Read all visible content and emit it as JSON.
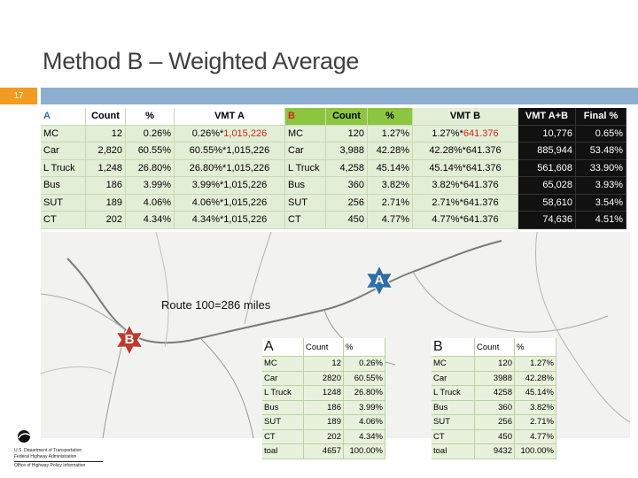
{
  "slide": {
    "title": "Method B – Weighted Average",
    "number": "17"
  },
  "top_table": {
    "header_a": {
      "letter": "A",
      "count": "Count",
      "pct": "%",
      "vmt": "VMT A"
    },
    "header_b": {
      "letter": "B",
      "count": "Count",
      "pct": "%",
      "vmt": "VMT B"
    },
    "header_final": {
      "vmt_ab": "VMT A+B",
      "final": "Final %"
    },
    "rows": [
      {
        "a_label": "MC",
        "a_count": "12",
        "a_pct": "0.26%",
        "a_vmt_pre": "0.26%*",
        "a_vmt_val": "1,015,226",
        "a_vmt_red": true,
        "b_label": "MC",
        "b_count": "120",
        "b_pct": "1.27%",
        "b_vmt_pre": "1.27%*",
        "b_vmt_val": "641.376",
        "b_vmt_red": true,
        "vmt_ab": "10,776",
        "final": "0.65%"
      },
      {
        "a_label": "Car",
        "a_count": "2,820",
        "a_pct": "60.55%",
        "a_vmt_pre": "60.55%*",
        "a_vmt_val": "1,015,226",
        "a_vmt_red": false,
        "b_label": "Car",
        "b_count": "3,988",
        "b_pct": "42.28%",
        "b_vmt_pre": "42.28%*",
        "b_vmt_val": "641.376",
        "b_vmt_red": false,
        "vmt_ab": "885,944",
        "final": "53.48%"
      },
      {
        "a_label": "L Truck",
        "a_count": "1,248",
        "a_pct": "26.80%",
        "a_vmt_pre": "26.80%*",
        "a_vmt_val": "1,015,226",
        "a_vmt_red": false,
        "b_label": "L Truck",
        "b_count": "4,258",
        "b_pct": "45.14%",
        "b_vmt_pre": "45.14%*",
        "b_vmt_val": "641.376",
        "b_vmt_red": false,
        "vmt_ab": "561,608",
        "final": "33.90%"
      },
      {
        "a_label": "Bus",
        "a_count": "186",
        "a_pct": "3.99%",
        "a_vmt_pre": "3.99%*",
        "a_vmt_val": "1,015,226",
        "a_vmt_red": false,
        "b_label": "Bus",
        "b_count": "360",
        "b_pct": "3.82%",
        "b_vmt_pre": "3.82%*",
        "b_vmt_val": "641.376",
        "b_vmt_red": false,
        "vmt_ab": "65,028",
        "final": "3.93%"
      },
      {
        "a_label": "SUT",
        "a_count": "189",
        "a_pct": "4.06%",
        "a_vmt_pre": "4.06%*",
        "a_vmt_val": "1,015,226",
        "a_vmt_red": false,
        "b_label": "SUT",
        "b_count": "256",
        "b_pct": "2.71%",
        "b_vmt_pre": "2.71%*",
        "b_vmt_val": "641.376",
        "b_vmt_red": false,
        "vmt_ab": "58,610",
        "final": "3.54%"
      },
      {
        "a_label": "CT",
        "a_count": "202",
        "a_pct": "4.34%",
        "a_vmt_pre": "4.34%*",
        "a_vmt_val": "1,015,226",
        "a_vmt_red": false,
        "b_label": "CT",
        "b_count": "450",
        "b_pct": "4.77%",
        "b_vmt_pre": "4.77%*",
        "b_vmt_val": "641.376",
        "b_vmt_red": false,
        "vmt_ab": "74,636",
        "final": "4.51%"
      }
    ]
  },
  "map": {
    "route_label": "Route 100=286 miles",
    "marker_a": "A",
    "marker_b": "B",
    "colors": {
      "marker_a": "#2f6fa8",
      "marker_b": "#c0392b",
      "road": "#7a7a7a"
    }
  },
  "small_table_a": {
    "header": {
      "letter": "A",
      "count": "Count",
      "pct": "%"
    },
    "rows": [
      {
        "label": "MC",
        "count": "12",
        "pct": "0.26%"
      },
      {
        "label": "Car",
        "count": "2820",
        "pct": "60.55%"
      },
      {
        "label": "L Truck",
        "count": "1248",
        "pct": "26.80%"
      },
      {
        "label": "Bus",
        "count": "186",
        "pct": "3.99%"
      },
      {
        "label": "SUT",
        "count": "189",
        "pct": "4.06%"
      },
      {
        "label": "CT",
        "count": "202",
        "pct": "4.34%"
      },
      {
        "label": "toal",
        "count": "4657",
        "pct": "100.00%"
      }
    ]
  },
  "small_table_b": {
    "header": {
      "letter": "B",
      "count": "Count",
      "pct": "%"
    },
    "rows": [
      {
        "label": "MC",
        "count": "120",
        "pct": "1.27%"
      },
      {
        "label": "Car",
        "count": "3988",
        "pct": "42.28%"
      },
      {
        "label": "L Truck",
        "count": "4258",
        "pct": "45.14%"
      },
      {
        "label": "Bus",
        "count": "360",
        "pct": "3.82%"
      },
      {
        "label": "SUT",
        "count": "256",
        "pct": "2.71%"
      },
      {
        "label": "CT",
        "count": "450",
        "pct": "4.77%"
      },
      {
        "label": "toal",
        "count": "9432",
        "pct": "100.00%"
      }
    ]
  },
  "logo": {
    "line1": "U.S. Department of Transportation",
    "line2": "Federal Highway Administration",
    "line3": "Office of Highway Policy Information"
  }
}
